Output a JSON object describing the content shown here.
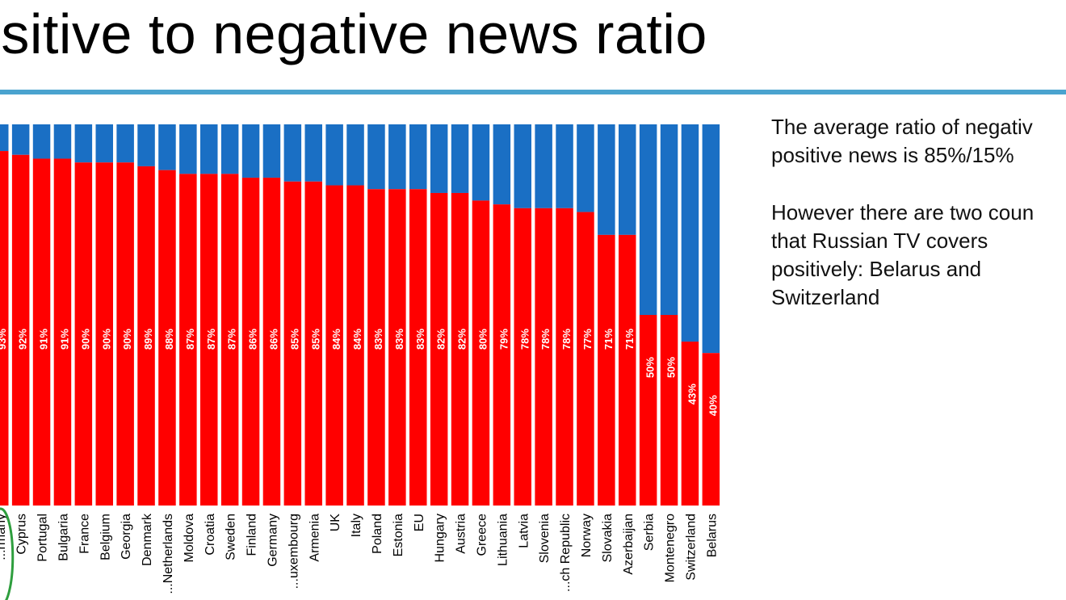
{
  "title": "ositive to negative news ratio",
  "notes": {
    "para1": [
      "The average ratio of negativ",
      "positive news is 85%/15%"
    ],
    "para2": [
      "However there are two coun",
      "that Russian TV covers",
      "positively: Belarus and",
      "Switzerland"
    ]
  },
  "colors": {
    "negative": "#ff0000",
    "positive": "#1a6fc4",
    "rule": "#4aa3cf",
    "highlight": "#2e9e3e"
  },
  "chart_data": {
    "type": "bar",
    "stacked": true,
    "ylim": [
      0,
      100
    ],
    "highlighted_category": "...rmany",
    "categories": [
      "...rmany",
      "Cyprus",
      "Portugal",
      "Bulgaria",
      "France",
      "Belgium",
      "Georgia",
      "Denmark",
      "...Netherlands",
      "Moldova",
      "Croatia",
      "Sweden",
      "Finland",
      "Germany",
      "...uxembourg",
      "Armenia",
      "UK",
      "Italy",
      "Poland",
      "Estonia",
      "EU",
      "Hungary",
      "Austria",
      "Greece",
      "Lithuania",
      "Latvia",
      "Slovenia",
      "...ch Republic",
      "Norway",
      "Slovakia",
      "Azerbaijan",
      "Serbia",
      "Montenegro",
      "Switzerland",
      "Belarus"
    ],
    "series": [
      {
        "color": "#ff0000",
        "values": [
          93,
          92,
          91,
          91,
          90,
          90,
          90,
          89,
          88,
          87,
          87,
          87,
          86,
          86,
          85,
          85,
          84,
          84,
          83,
          83,
          83,
          82,
          82,
          80,
          79,
          78,
          78,
          78,
          77,
          71,
          71,
          50,
          50,
          43,
          40
        ],
        "labels": [
          "93%",
          "92%",
          "91%",
          "91%",
          "90%",
          "90%",
          "90%",
          "89%",
          "88%",
          "87%",
          "87%",
          "87%",
          "86%",
          "86%",
          "85%",
          "85%",
          "84%",
          "84%",
          "83%",
          "83%",
          "83%",
          "82%",
          "82%",
          "80%",
          "79%",
          "78%",
          "78%",
          "78%",
          "77%",
          "71%",
          "71%",
          "50%",
          "50%",
          "43%",
          "40%"
        ]
      },
      {
        "color": "#1a6fc4",
        "values": [
          7,
          8,
          9,
          9,
          10,
          10,
          10,
          11,
          12,
          13,
          13,
          13,
          14,
          14,
          15,
          15,
          16,
          16,
          17,
          17,
          17,
          18,
          18,
          20,
          21,
          22,
          22,
          22,
          23,
          29,
          29,
          50,
          50,
          57,
          60
        ]
      }
    ]
  }
}
